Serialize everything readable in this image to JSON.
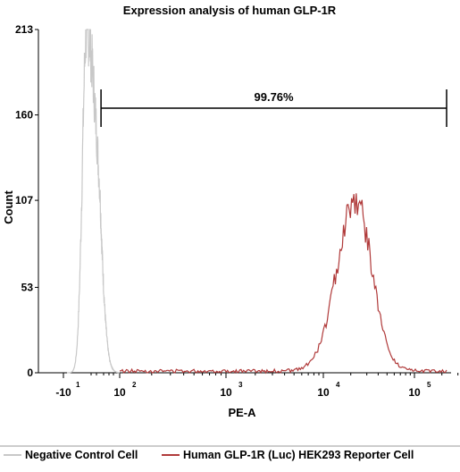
{
  "chart_data": {
    "type": "histogram",
    "title": "Expression analysis of human GLP-1R",
    "xlabel": "PE-A",
    "ylabel": "Count",
    "yticks": [
      "0",
      "53",
      "107",
      "160",
      "213"
    ],
    "ylim": [
      0,
      213
    ],
    "xscale": "biexponential (log)",
    "xticks": [
      {
        "base": "-10",
        "exp": "1"
      },
      {
        "base": "10",
        "exp": "2"
      },
      {
        "base": "10",
        "exp": "3"
      },
      {
        "base": "10",
        "exp": "4"
      },
      {
        "base": "10",
        "exp": "5"
      }
    ],
    "gate": {
      "label": "99.76%",
      "from_decade": 1.05,
      "to_decade": 5.3
    },
    "series": [
      {
        "name": "Negative Control Cell",
        "color": "#c8c8c8",
        "peak_decade": 0.6,
        "peak_count": 213
      },
      {
        "name": "Human GLP-1R (Luc) HEK293 Reporter Cell",
        "color": "#b03a3a",
        "peak_decade": 4.35,
        "peak_count": 107
      }
    ],
    "legend_position": "bottom",
    "grid": false
  }
}
